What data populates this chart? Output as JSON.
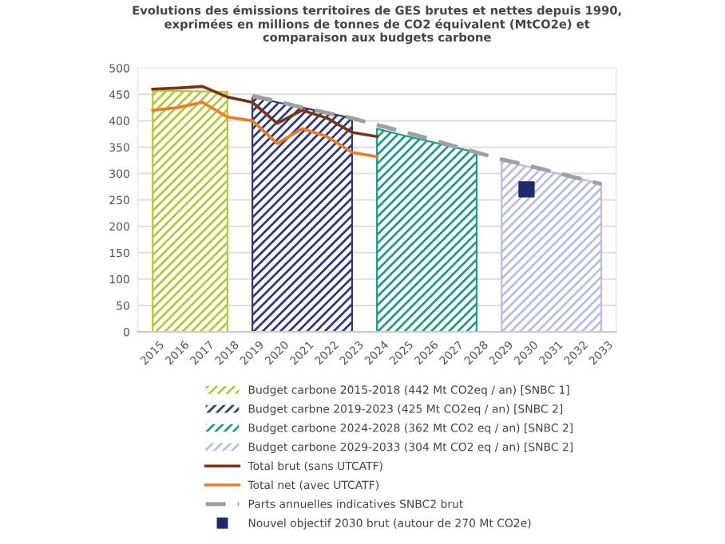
{
  "chart_data": {
    "type": "line",
    "title": "Evolutions des émissions territoires de GES brutes et nettes depuis 1990,\nexprimées en millions de tonnes de CO2 équivalent (MtCO2e) et\ncomparaison aux budgets carbone",
    "xlim": [
      2014.4,
      2033.6
    ],
    "xticks": [
      2015,
      2016,
      2017,
      2018,
      2019,
      2020,
      2021,
      2022,
      2023,
      2024,
      2025,
      2026,
      2027,
      2028,
      2029,
      2030,
      2031,
      2032,
      2033
    ],
    "ylim": [
      0,
      500
    ],
    "yticks": [
      0,
      50,
      100,
      150,
      200,
      250,
      300,
      350,
      400,
      450,
      500
    ],
    "grid": "y",
    "legend": "bottom",
    "series": [
      {
        "type": "area",
        "name": "Budget carbone 2015-2018 (442 Mt CO2eq / an) [SNBC 1]",
        "color": "#b5c934",
        "x": [
          2015,
          2018
        ],
        "values": [
          457,
          455
        ]
      },
      {
        "type": "area",
        "name": "Budget carbne 2019-2023 (425 Mt CO2eq / an) [SNBC 2]",
        "color": "#2e3a7a",
        "x": [
          2019,
          2020,
          2021,
          2022,
          2023
        ],
        "values": [
          445,
          435,
          425,
          415,
          405
        ]
      },
      {
        "type": "area",
        "name": "Budget carbone 2024-2028 (362 Mt CO2 eq / an) [SNBC 2]",
        "color": "#1f9a8f",
        "x": [
          2024,
          2025,
          2026,
          2027,
          2028
        ],
        "values": [
          385,
          373,
          362,
          351,
          340
        ]
      },
      {
        "type": "area",
        "name": "Budget carbone 2029-2033 (304 Mt CO2 eq / an) [SNBC 2]",
        "color": "#b7bde6",
        "x": [
          2029,
          2030,
          2031,
          2032,
          2033
        ],
        "values": [
          325,
          314,
          303,
          292,
          280
        ]
      },
      {
        "name": "Total brut (sans UTCATF)",
        "color": "#7a3415",
        "x": [
          2015,
          2016,
          2017,
          2018,
          2019,
          2020,
          2021,
          2022,
          2023,
          2024
        ],
        "values": [
          460,
          462,
          465,
          445,
          435,
          395,
          420,
          405,
          378,
          370
        ]
      },
      {
        "name": "Total net (avec UTCATF)",
        "color": "#ee7a2a",
        "x": [
          2015,
          2016,
          2017,
          2018,
          2019,
          2020,
          2021,
          2022,
          2023,
          2024
        ],
        "values": [
          420,
          425,
          435,
          407,
          400,
          357,
          385,
          370,
          340,
          332
        ]
      },
      {
        "line_style": "dashed",
        "name": "Parts annuelles indicatives SNBC2 brut",
        "color": "#a0a0a0",
        "x": [
          2019,
          2020,
          2021,
          2022,
          2023,
          2024,
          2025,
          2026,
          2027,
          2028,
          2029,
          2030,
          2031,
          2032,
          2033
        ],
        "values": [
          447,
          437,
          425,
          415,
          405,
          392,
          380,
          367,
          353,
          340,
          327,
          316,
          304,
          292,
          280
        ]
      },
      {
        "type": "scatter",
        "marker": "square",
        "name": "Nouvel objectif 2030 brut (autour de 270 Mt CO2e)",
        "color": "#1f2a6b",
        "x": [
          2030
        ],
        "values": [
          270
        ]
      }
    ]
  }
}
